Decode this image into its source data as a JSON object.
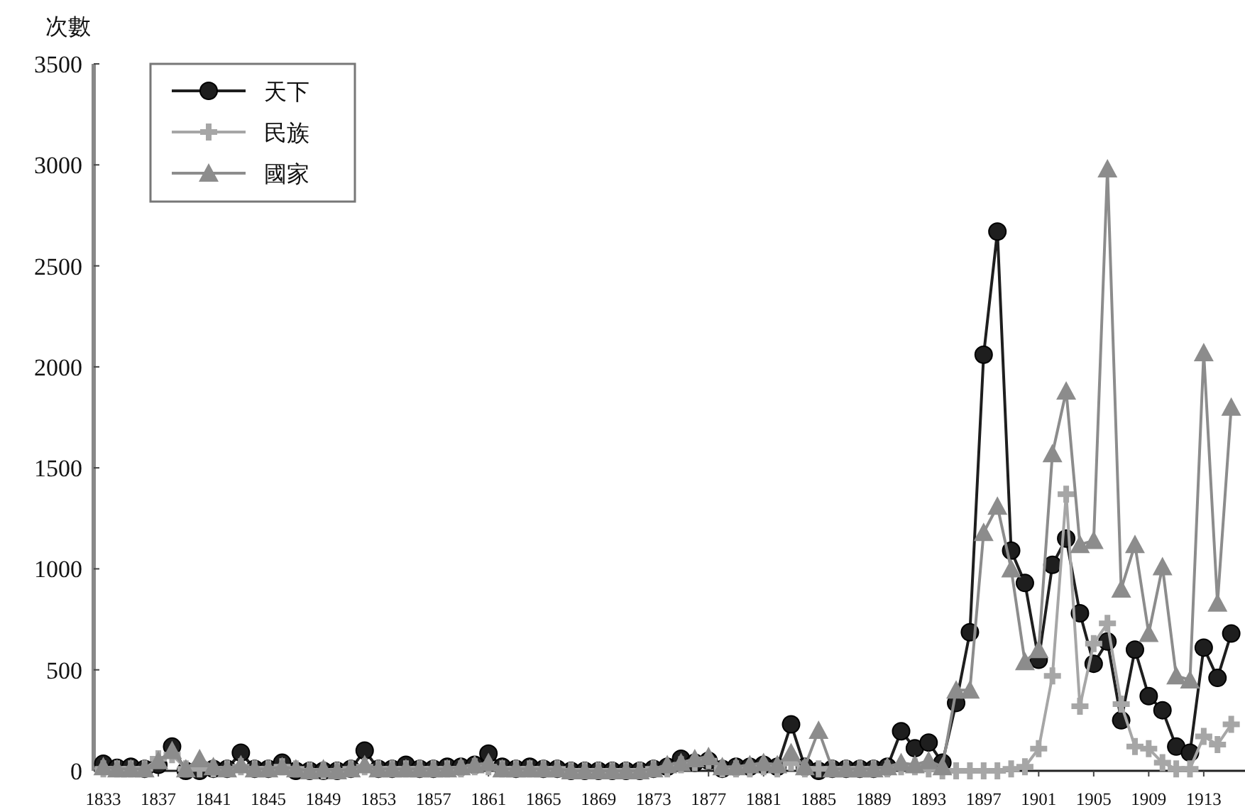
{
  "chart_data": {
    "type": "line",
    "ylabel": "次數",
    "x": [
      1833,
      1834,
      1835,
      1836,
      1837,
      1838,
      1839,
      1840,
      1841,
      1842,
      1843,
      1844,
      1845,
      1846,
      1847,
      1848,
      1849,
      1850,
      1851,
      1852,
      1853,
      1854,
      1855,
      1856,
      1857,
      1858,
      1859,
      1860,
      1861,
      1862,
      1863,
      1864,
      1865,
      1866,
      1867,
      1868,
      1869,
      1870,
      1871,
      1872,
      1873,
      1874,
      1875,
      1876,
      1877,
      1878,
      1879,
      1880,
      1881,
      1882,
      1883,
      1884,
      1885,
      1886,
      1887,
      1888,
      1889,
      1890,
      1891,
      1892,
      1893,
      1894,
      1895,
      1896,
      1897,
      1898,
      1899,
      1900,
      1901,
      1902,
      1903,
      1904,
      1905,
      1906,
      1907,
      1908,
      1909,
      1910,
      1911,
      1912,
      1913,
      1914,
      1915
    ],
    "series": [
      {
        "name": "天下",
        "color": "#1e1e1e",
        "marker": "circle",
        "values": [
          35,
          15,
          20,
          10,
          30,
          120,
          0,
          0,
          10,
          10,
          90,
          10,
          10,
          40,
          0,
          0,
          0,
          0,
          10,
          100,
          10,
          10,
          30,
          10,
          10,
          20,
          20,
          30,
          85,
          20,
          10,
          20,
          10,
          10,
          0,
          0,
          0,
          0,
          0,
          0,
          10,
          20,
          60,
          40,
          50,
          10,
          20,
          20,
          30,
          20,
          230,
          20,
          0,
          10,
          10,
          10,
          10,
          20,
          196,
          112,
          140,
          40,
          336,
          686,
          2060,
          2670,
          1090,
          930,
          550,
          1020,
          1150,
          780,
          530,
          640,
          250,
          600,
          370,
          300,
          120,
          90,
          610,
          460,
          680
        ]
      },
      {
        "name": "民族",
        "color": "#a6a6a6",
        "marker": "cross",
        "values": [
          10,
          10,
          10,
          10,
          60,
          80,
          10,
          10,
          10,
          10,
          20,
          10,
          10,
          20,
          10,
          0,
          0,
          0,
          10,
          20,
          10,
          10,
          10,
          10,
          10,
          10,
          10,
          20,
          20,
          10,
          10,
          10,
          10,
          10,
          0,
          0,
          0,
          0,
          0,
          0,
          10,
          10,
          30,
          40,
          50,
          10,
          10,
          10,
          20,
          10,
          40,
          10,
          10,
          10,
          10,
          10,
          10,
          10,
          20,
          20,
          10,
          0,
          0,
          0,
          0,
          0,
          10,
          20,
          110,
          470,
          1370,
          320,
          630,
          730,
          330,
          120,
          110,
          40,
          10,
          10,
          170,
          130,
          230
        ]
      },
      {
        "name": "國家",
        "color": "#8c8c8c",
        "marker": "triangle",
        "values": [
          20,
          10,
          10,
          10,
          50,
          100,
          10,
          60,
          20,
          10,
          30,
          10,
          10,
          20,
          10,
          0,
          10,
          0,
          10,
          30,
          10,
          10,
          10,
          10,
          10,
          10,
          20,
          30,
          40,
          10,
          10,
          10,
          10,
          10,
          0,
          0,
          0,
          0,
          0,
          0,
          10,
          30,
          40,
          60,
          70,
          20,
          20,
          30,
          40,
          30,
          90,
          20,
          200,
          10,
          10,
          10,
          10,
          20,
          40,
          30,
          50,
          20,
          400,
          400,
          1180,
          1310,
          1000,
          540,
          600,
          1570,
          1880,
          1120,
          1140,
          2980,
          900,
          1120,
          680,
          1010,
          470,
          450,
          2070,
          830,
          1800
        ]
      }
    ],
    "xlim": [
      1832.3,
      1916
    ],
    "xticks": [
      1833,
      1837,
      1841,
      1845,
      1849,
      1853,
      1857,
      1861,
      1865,
      1869,
      1873,
      1877,
      1881,
      1885,
      1889,
      1893,
      1897,
      1901,
      1905,
      1909,
      1913
    ],
    "ylim": [
      0,
      3500
    ],
    "yticks": [
      0,
      500,
      1000,
      1500,
      2000,
      2500,
      3000,
      3500
    ],
    "legend": "top left",
    "line_style": "solid"
  }
}
